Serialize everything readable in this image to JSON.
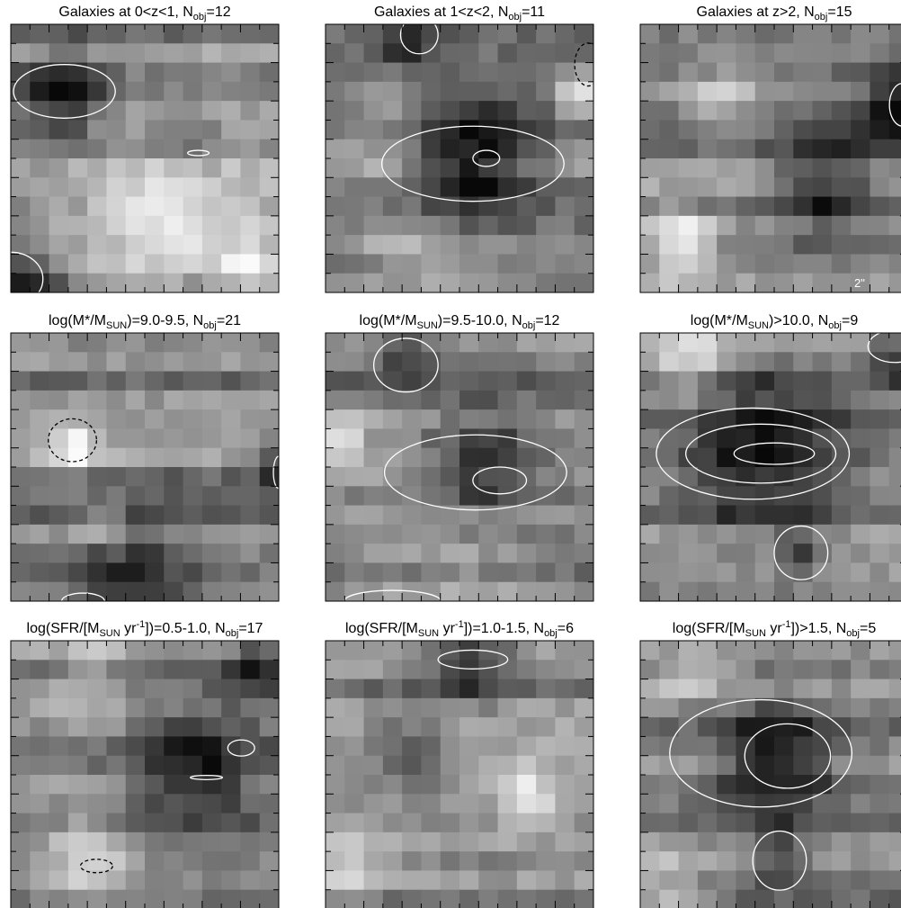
{
  "panels": [
    {
      "title": [
        {
          "text": "Galaxies at 0<z<1, N"
        },
        {
          "text": "obj",
          "sub": true
        },
        {
          "text": "=12"
        }
      ]
    },
    {
      "title": [
        {
          "text": "Galaxies at 1<z<2, N"
        },
        {
          "text": "obj",
          "sub": true
        },
        {
          "text": "=11"
        }
      ]
    },
    {
      "title": [
        {
          "text": "Galaxies at z>2, N"
        },
        {
          "text": "obj",
          "sub": true
        },
        {
          "text": "=15"
        }
      ],
      "scale_label": "2\""
    },
    {
      "title": [
        {
          "text": "log(M*/M"
        },
        {
          "text": "SUN",
          "sub": true
        },
        {
          "text": ")=9.0-9.5, N"
        },
        {
          "text": "obj",
          "sub": true
        },
        {
          "text": "=21"
        }
      ]
    },
    {
      "title": [
        {
          "text": "log(M*/M"
        },
        {
          "text": "SUN",
          "sub": true
        },
        {
          "text": ")=9.5-10.0, N"
        },
        {
          "text": "obj",
          "sub": true
        },
        {
          "text": "=12"
        }
      ]
    },
    {
      "title": [
        {
          "text": "log(M*/M"
        },
        {
          "text": "SUN",
          "sub": true
        },
        {
          "text": ")>10.0, N"
        },
        {
          "text": "obj",
          "sub": true
        },
        {
          "text": "=9"
        }
      ]
    },
    {
      "title": [
        {
          "text": "log(SFR/[M"
        },
        {
          "text": "SUN",
          "sub": true
        },
        {
          "text": " yr"
        },
        {
          "text": "-1",
          "sup": true
        },
        {
          "text": "])=0.5-1.0, N"
        },
        {
          "text": "obj",
          "sub": true
        },
        {
          "text": "=17"
        }
      ]
    },
    {
      "title": [
        {
          "text": "log(SFR/[M"
        },
        {
          "text": "SUN",
          "sub": true
        },
        {
          "text": " yr"
        },
        {
          "text": "-1",
          "sup": true
        },
        {
          "text": "])=1.0-1.5, N"
        },
        {
          "text": "obj",
          "sub": true
        },
        {
          "text": "=6"
        }
      ]
    },
    {
      "title": [
        {
          "text": "log(SFR/[M"
        },
        {
          "text": "SUN",
          "sub": true
        },
        {
          "text": " yr"
        },
        {
          "text": "-1",
          "sup": true
        },
        {
          "text": "])>1.5, N"
        },
        {
          "text": "obj",
          "sub": true
        },
        {
          "text": "=5"
        }
      ]
    }
  ]
}
